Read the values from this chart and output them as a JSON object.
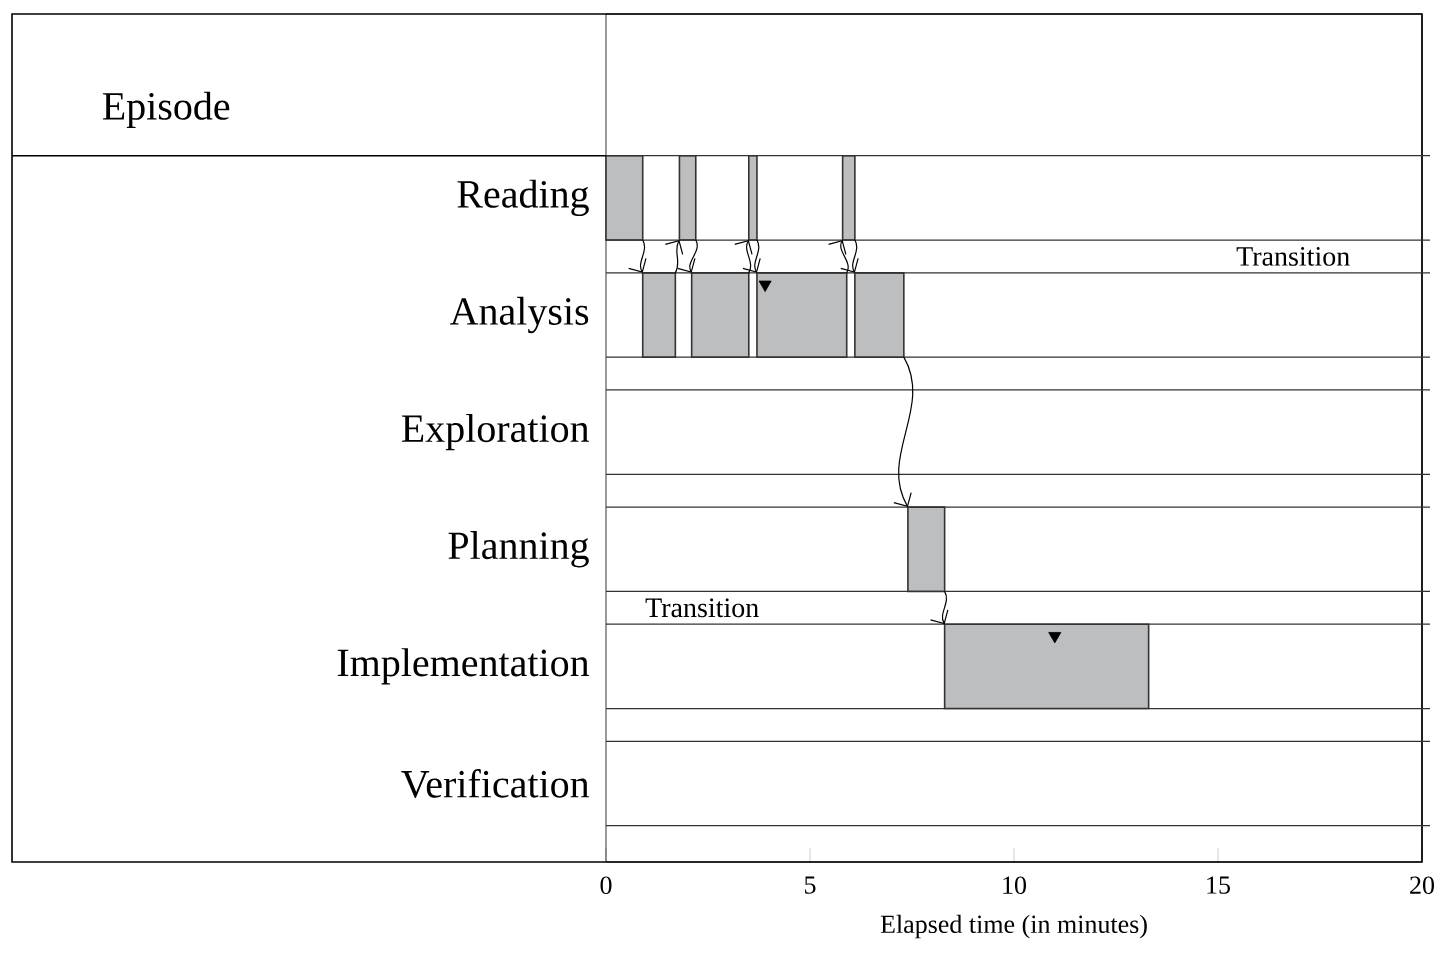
{
  "chart_data": {
    "type": "bar",
    "orientation": "horizontal",
    "ylabel": "Episode",
    "xlabel": "Elapsed time (in minutes)",
    "categories": [
      "Reading",
      "Analysis",
      "Exploration",
      "Planning",
      "Implementation",
      "Verification"
    ],
    "xlim": [
      0,
      20
    ],
    "xticks": [
      {
        "value": 0,
        "label": "0"
      },
      {
        "value": 5,
        "label": "5"
      },
      {
        "value": 10,
        "label": "10"
      },
      {
        "value": 15,
        "label": "15"
      },
      {
        "value": 20,
        "label": "20"
      }
    ],
    "annotations": [
      "Transition",
      "Transition"
    ],
    "series": [
      {
        "color": "#bcbec0",
        "base": [
          0,
          0.9,
          null,
          7.4,
          8.3,
          null
        ],
        "values": [
          0.9,
          0.8,
          null,
          0.9,
          5.0,
          null
        ]
      },
      {
        "color": "#bcbec0",
        "base": [
          1.8,
          2.1,
          null,
          null,
          null,
          null
        ],
        "values": [
          0.4,
          1.4,
          null,
          null,
          null,
          null
        ]
      },
      {
        "color": "#bcbec0",
        "base": [
          3.5,
          3.7,
          null,
          null,
          null,
          null
        ],
        "values": [
          0.2,
          2.2,
          null,
          null,
          null,
          null
        ]
      },
      {
        "color": "#bcbec0",
        "base": [
          5.8,
          6.1,
          null,
          null,
          null,
          null
        ],
        "values": [
          0.3,
          1.2,
          null,
          null,
          null,
          null
        ]
      },
      {
        "type": "scatter",
        "marker": "triangle",
        "color": "#000000",
        "values": [
          null,
          3.9,
          null,
          null,
          11.0,
          null
        ]
      }
    ]
  }
}
